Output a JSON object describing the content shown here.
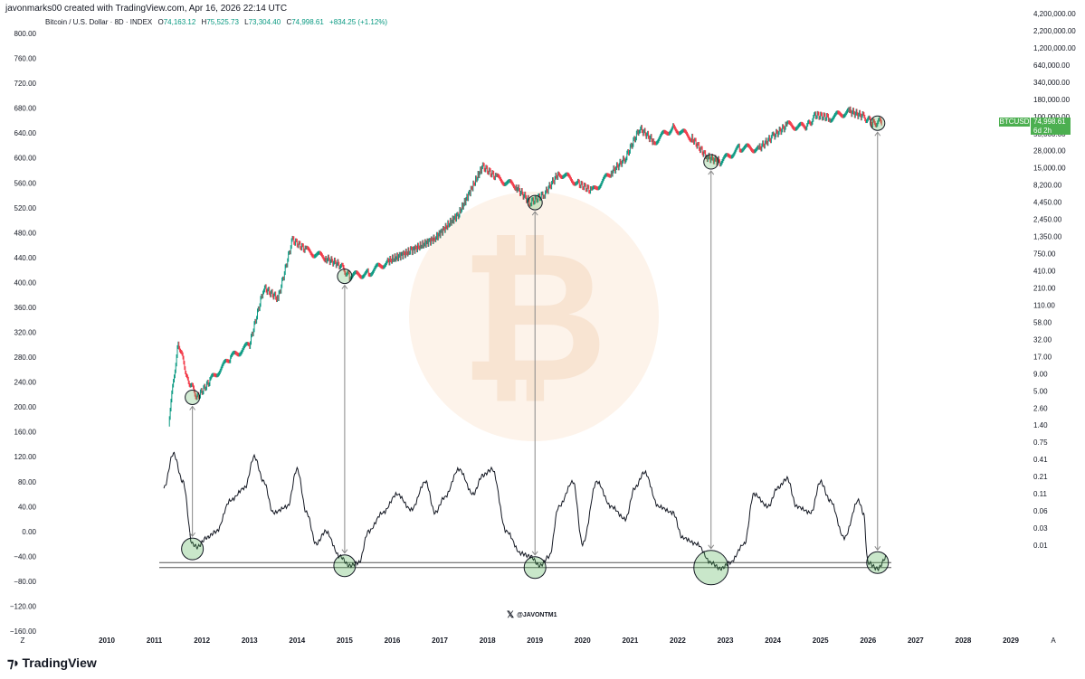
{
  "header": {
    "title": "javonmarks00 created with TradingView.com, Apr 16, 2026 22:14 UTC",
    "symbol": "Bitcoin / U.S. Dollar · 8D · INDEX",
    "o_label": "O",
    "o_value": "74,163.12",
    "h_label": "H",
    "h_value": "75,525.73",
    "l_label": "L",
    "l_value": "73,304.40",
    "c_label": "C",
    "c_value": "74,998.61",
    "change": "+834.25 (+1.12%)"
  },
  "price_badge": {
    "label": "BTCUSD",
    "value": "74,998.61",
    "countdown": "6d 2h"
  },
  "watermark": {
    "handle": "@JAVONTM1",
    "x_icon": "x-logo-icon"
  },
  "footer": {
    "brand": "TradingView",
    "brand_icon": "tradingview-logo-icon"
  },
  "colors": {
    "up": "#089981",
    "down": "#f23645",
    "highlight": "#4caf50",
    "line": "#131722"
  },
  "chart_data": {
    "type": "line",
    "title": "",
    "xlabel": "",
    "ylabel": "",
    "x_ticks": [
      "2010",
      "2011",
      "2012",
      "2013",
      "2014",
      "2015",
      "2016",
      "2017",
      "2018",
      "2019",
      "2020",
      "2021",
      "2022",
      "2023",
      "2024",
      "2025",
      "2026",
      "2027",
      "2028",
      "2029"
    ],
    "x_axis_left_label": "Z",
    "x_axis_right_label": "A",
    "left_axis": {
      "ticks": [
        "800.00",
        "760.00",
        "720.00",
        "680.00",
        "640.00",
        "600.00",
        "560.00",
        "520.00",
        "480.00",
        "440.00",
        "400.00",
        "360.00",
        "320.00",
        "280.00",
        "240.00",
        "200.00",
        "160.00",
        "120.00",
        "80.00",
        "40.00",
        "0.00",
        "−40.00",
        "−80.00",
        "−120.00",
        "−160.00"
      ],
      "ylim": [
        -160,
        800
      ]
    },
    "right_axis": {
      "scale": "log",
      "ticks": [
        "4,200,000.00",
        "2,200,000.00",
        "1,200,000.00",
        "640,000.00",
        "340,000.00",
        "180,000.00",
        "100,000.00",
        "53,000.00",
        "28,000.00",
        "15,000.00",
        "8,200.00",
        "4,450.00",
        "2,450.00",
        "1,350.00",
        "750.00",
        "410.00",
        "210.00",
        "110.00",
        "58.00",
        "32.00",
        "17.00",
        "9.00",
        "5.00",
        "2.60",
        "1.40",
        "0.75",
        "0.41",
        "0.21",
        "0.11",
        "0.06",
        "0.03",
        "0.01"
      ]
    },
    "series": [
      {
        "kind": "price",
        "x": [
          2011.3,
          2011.5,
          2011.7,
          2011.9,
          2012.2,
          2012.6,
          2013.0,
          2013.3,
          2013.6,
          2013.9,
          2014.2,
          2014.6,
          2014.9,
          2015.1,
          2015.5,
          2015.9,
          2016.4,
          2016.9,
          2017.4,
          2017.9,
          2018.2,
          2018.6,
          2018.9,
          2019.2,
          2019.5,
          2019.9,
          2020.2,
          2020.6,
          2020.9,
          2021.2,
          2021.5,
          2021.9,
          2022.3,
          2022.6,
          2022.9,
          2023.3,
          2023.7,
          2024.0,
          2024.3,
          2024.7,
          2024.9,
          2025.2,
          2025.6,
          2025.9,
          2026.1,
          2026.3
        ],
        "values": [
          1,
          20,
          5,
          2.5,
          5,
          11,
          18,
          150,
          100,
          900,
          600,
          450,
          350,
          230,
          260,
          400,
          600,
          950,
          2400,
          14000,
          9000,
          6500,
          3600,
          5000,
          11000,
          7500,
          5500,
          11000,
          19000,
          58000,
          35000,
          60000,
          40000,
          20000,
          16500,
          28000,
          27000,
          43000,
          65000,
          60000,
          95000,
          85000,
          110000,
          90000,
          70000,
          75000
        ]
      },
      {
        "kind": "oscillator",
        "x": [
          2011.2,
          2011.4,
          2011.6,
          2011.8,
          2011.9,
          2012.1,
          2012.3,
          2012.6,
          2012.9,
          2013.1,
          2013.3,
          2013.5,
          2013.8,
          2014.0,
          2014.2,
          2014.4,
          2014.6,
          2014.9,
          2015.1,
          2015.3,
          2015.5,
          2015.8,
          2016.1,
          2016.4,
          2016.7,
          2016.9,
          2017.1,
          2017.4,
          2017.7,
          2017.9,
          2018.1,
          2018.4,
          2018.7,
          2018.9,
          2019.1,
          2019.3,
          2019.5,
          2019.8,
          2020.0,
          2020.3,
          2020.6,
          2020.9,
          2021.1,
          2021.3,
          2021.6,
          2021.9,
          2022.1,
          2022.4,
          2022.7,
          2022.9,
          2023.1,
          2023.4,
          2023.6,
          2023.9,
          2024.1,
          2024.3,
          2024.5,
          2024.8,
          2025.0,
          2025.2,
          2025.5,
          2025.8,
          2025.9,
          2026.0,
          2026.2,
          2026.4
        ],
        "values": [
          70,
          125,
          80,
          -20,
          -25,
          -10,
          0,
          50,
          70,
          120,
          80,
          30,
          40,
          100,
          30,
          -20,
          0,
          -40,
          -55,
          -50,
          0,
          30,
          60,
          35,
          80,
          30,
          55,
          100,
          60,
          90,
          100,
          0,
          -35,
          -40,
          -55,
          -40,
          40,
          80,
          -20,
          80,
          40,
          20,
          70,
          95,
          40,
          30,
          -10,
          -20,
          -50,
          -60,
          -50,
          -20,
          60,
          40,
          70,
          85,
          40,
          30,
          80,
          50,
          -10,
          50,
          30,
          -50,
          -60,
          -40
        ]
      }
    ],
    "highlighted_lows": [
      {
        "x": 2011.8,
        "price": 2.5,
        "oscillator": -28
      },
      {
        "x": 2015.0,
        "price": 230,
        "oscillator": -55
      },
      {
        "x": 2019.0,
        "price": 3600,
        "oscillator": -58
      },
      {
        "x": 2022.7,
        "price": 16500,
        "oscillator": -58
      },
      {
        "x": 2026.2,
        "price": 70000,
        "oscillator": -50
      }
    ],
    "support_lines": [
      -50,
      -58
    ],
    "grid": false,
    "legend": "none"
  }
}
